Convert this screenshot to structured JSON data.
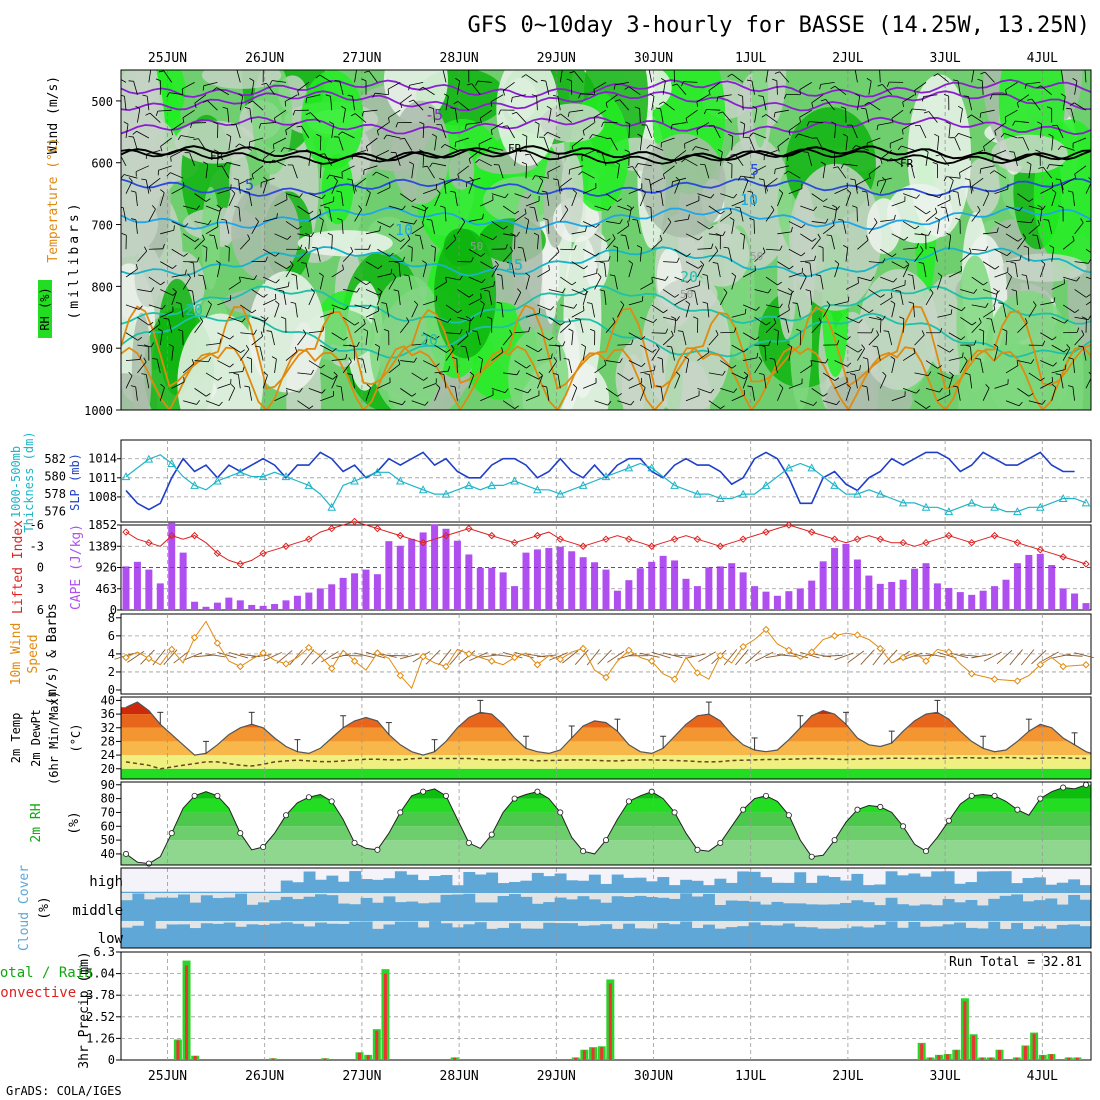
{
  "title": "GFS 0~10day 3-hourly for BASSE (14.25W, 13.25N)",
  "credit": "GrADS: COLA/IGES",
  "colors": {
    "green": "#11a811",
    "orange": "#e08a10",
    "red": "#dd2222",
    "purple": "#b04ff0",
    "cyan": "#1fb5c8",
    "blue": "#1e3fc8",
    "cloud": "#5ea7d6"
  },
  "chart_data": {
    "type": "composite",
    "dates": [
      "25JUN",
      "26JUN",
      "27JUN",
      "28JUN",
      "29JUN",
      "30JUN",
      "1JUL",
      "2JUL",
      "3JUL",
      "4JUL"
    ],
    "upper_air": {
      "ylabels": [
        "Wind (m/s)",
        "Temperature (°C)",
        "RH (%)",
        "(millibars)"
      ],
      "pressure_ticks": [
        500,
        600,
        700,
        800,
        900,
        1000
      ],
      "temp_contour_labels": [
        "-5",
        "5",
        "5",
        "10",
        "10",
        "15",
        "20",
        "20",
        "20",
        "FR",
        "FR",
        "FR",
        "50",
        "50",
        "50"
      ]
    },
    "slp_thickness": {
      "ylabels": [
        "1000-500mb",
        "Thickness (dm)",
        "SLP (mb)"
      ],
      "thickness_ticks": [
        576,
        578,
        580,
        582
      ],
      "slp_ticks": [
        1008,
        1011,
        1014
      ],
      "slp": [
        1009,
        1007,
        1006,
        1007,
        1011,
        1014,
        1012,
        1013,
        1011,
        1013,
        1012,
        1013,
        1014,
        1013,
        1011,
        1013,
        1013,
        1015,
        1014,
        1012,
        1013,
        1011,
        1012,
        1014,
        1013,
        1014,
        1015,
        1013,
        1014,
        1012,
        1011,
        1011,
        1013,
        1014,
        1014,
        1013,
        1011,
        1012,
        1014,
        1012,
        1011,
        1013,
        1011,
        1013,
        1014,
        1014,
        1012,
        1011,
        1013,
        1014,
        1013,
        1013,
        1012,
        1010,
        1011,
        1014,
        1015,
        1014,
        1011,
        1007,
        1007,
        1011,
        1012,
        1010,
        1009,
        1011,
        1012,
        1014,
        1013,
        1014,
        1015,
        1015,
        1014,
        1012,
        1013,
        1015,
        1014,
        1013,
        1013,
        1014,
        1015,
        1013,
        1012,
        1012
      ],
      "thickness": [
        580,
        581,
        582,
        582.5,
        581.5,
        580,
        579,
        578.5,
        579.5,
        580,
        580.5,
        580,
        580,
        580.5,
        580,
        579.5,
        579,
        578,
        576.5,
        579,
        579.5,
        580,
        580.5,
        580.5,
        579.5,
        579,
        578.5,
        578,
        578,
        578.5,
        579,
        578.5,
        579,
        579,
        579.5,
        579,
        578.5,
        578.5,
        578,
        578.5,
        579,
        579.5,
        580,
        580.5,
        581,
        581.5,
        581,
        580,
        579,
        578.5,
        578,
        578,
        577.5,
        577.5,
        578,
        578,
        579,
        580,
        581,
        581.5,
        581,
        580,
        579,
        578,
        578,
        578.5,
        578,
        577.5,
        577,
        577,
        576.5,
        576.5,
        576,
        576.5,
        577,
        576.5,
        576.5,
        576,
        576,
        576.5,
        576.5,
        577,
        577.5,
        577.5,
        577
      ]
    },
    "cape_li": {
      "ylabels": [
        "Lifted Index",
        "CAPE (J/kg)"
      ],
      "li_ticks": [
        6,
        3,
        0,
        -3,
        -6
      ],
      "cape_ticks": [
        0,
        463,
        926,
        1389,
        1852
      ],
      "cape": [
        950,
        1050,
        880,
        580,
        1900,
        1250,
        180,
        70,
        160,
        270,
        210,
        110,
        90,
        130,
        210,
        310,
        380,
        470,
        560,
        700,
        800,
        880,
        780,
        1500,
        1400,
        1550,
        1690,
        1870,
        1770,
        1510,
        1210,
        920,
        920,
        820,
        520,
        1250,
        1320,
        1350,
        1380,
        1280,
        1150,
        1040,
        880,
        420,
        650,
        910,
        1050,
        1180,
        1080,
        680,
        520,
        930,
        950,
        1020,
        820,
        520,
        400,
        310,
        410,
        470,
        640,
        1060,
        1350,
        1440,
        1100,
        750,
        570,
        610,
        660,
        900,
        1020,
        580,
        480,
        390,
        330,
        420,
        520,
        660,
        1020,
        1200,
        1220,
        980,
        470,
        360,
        150
      ],
      "li": [
        -5,
        -4,
        -3.5,
        -3,
        -4.5,
        -4,
        -4.5,
        -3.5,
        -2,
        -1,
        -0.5,
        -1,
        -2,
        -2.5,
        -3,
        -3.5,
        -4,
        -5,
        -5.5,
        -6,
        -6.5,
        -6,
        -5.5,
        -5,
        -4.5,
        -4,
        -3.5,
        -4,
        -4.5,
        -5,
        -5.5,
        -5,
        -4.5,
        -4,
        -3.5,
        -4,
        -4.5,
        -5,
        -4,
        -3.5,
        -3,
        -3.5,
        -4,
        -4.5,
        -4,
        -3.5,
        -3,
        -3.5,
        -4,
        -4.5,
        -4,
        -3.5,
        -3,
        -3.5,
        -4,
        -4.5,
        -5,
        -5.5,
        -6,
        -5.5,
        -5,
        -4.5,
        -4,
        -3.5,
        -4,
        -4.5,
        -4,
        -3.5,
        -3.5,
        -3,
        -3.5,
        -4,
        -4.5,
        -4,
        -3.5,
        -4,
        -4.5,
        -4,
        -3.5,
        -3,
        -2.5,
        -2,
        -1.5,
        -1,
        -0.5
      ]
    },
    "wind10m": {
      "ylabels": [
        "10m Wind",
        "Speed",
        "(m/s) & Barbs"
      ],
      "ticks": [
        0,
        2,
        4,
        6,
        8
      ],
      "speed": [
        3.6,
        4.2,
        3.5,
        2.8,
        4.5,
        3.0,
        5.8,
        7.6,
        5.2,
        3.2,
        2.6,
        3.4,
        4.1,
        3.3,
        2.9,
        3.6,
        4.7,
        3.8,
        2.4,
        4.4,
        3.2,
        2.2,
        4.1,
        3.5,
        1.6,
        0.2,
        3.7,
        3.0,
        2.6,
        4.5,
        4.0,
        3.6,
        3.2,
        2.8,
        3.6,
        4.1,
        2.8,
        3.8,
        3.4,
        4.2,
        4.6,
        2.2,
        1.4,
        3.2,
        4.4,
        3.6,
        3.2,
        1.8,
        1.2,
        3.6,
        1.9,
        1.2,
        3.8,
        3.0,
        4.8,
        5.6,
        6.7,
        5.1,
        4.4,
        3.4,
        4.2,
        5.6,
        6.0,
        6.3,
        6.1,
        5.6,
        4.6,
        3.0,
        3.6,
        4.1,
        3.2,
        4.5,
        4.2,
        2.9,
        1.8,
        1.5,
        1.2,
        1.1,
        1.0,
        1.6,
        2.8,
        3.6,
        2.6,
        2.7,
        2.8
      ]
    },
    "temp2m": {
      "ylabels": [
        "2m Temp",
        "2m DewPt",
        "(6hr Min/Max)",
        "(°C)"
      ],
      "ticks": [
        20,
        24,
        28,
        32,
        36,
        40
      ],
      "temp": [
        38,
        39.5,
        37,
        33,
        30,
        27,
        24,
        24.5,
        27,
        30,
        32,
        33,
        32,
        29,
        26.5,
        25,
        24.5,
        26,
        29,
        32,
        34,
        35,
        34,
        30,
        27,
        25,
        24,
        25,
        28,
        32,
        35,
        36.5,
        36,
        33,
        29,
        26,
        25,
        24.5,
        25.5,
        29,
        32.5,
        34,
        33.5,
        31,
        27,
        25,
        24.5,
        26,
        29.5,
        33,
        35.5,
        36,
        34,
        30,
        27,
        25.5,
        25,
        25.5,
        28.5,
        32,
        35.5,
        37,
        36,
        33,
        29,
        27,
        26.5,
        27.5,
        31,
        34,
        36,
        36.5,
        34.5,
        31,
        28,
        26,
        25,
        25.5,
        28,
        31,
        33,
        32,
        29,
        27,
        25,
        24
      ],
      "dewpt": [
        22,
        21.5,
        21,
        20,
        20.5,
        21,
        21.5,
        22,
        22,
        21.5,
        21,
        20.8,
        21.3,
        22,
        22.3,
        22.5,
        22.3,
        22.1,
        22.1,
        22.3,
        22.6,
        22.8,
        22.8,
        22.6,
        22.6,
        22.9,
        23.1,
        23,
        23,
        23,
        23,
        22.8,
        22.6,
        22.6,
        22.8,
        22.6,
        22.3,
        22.4,
        22.5,
        22.6,
        22.6,
        22.5,
        22.3,
        22.3,
        22.5,
        22.6,
        22.6,
        22.5,
        22.4,
        22.3,
        22.1,
        22,
        22.1,
        22.4,
        22.5,
        22.6,
        22.7,
        22.7,
        22.8,
        22.9,
        23,
        23,
        22.8,
        22.7,
        22.8,
        22.9,
        23,
        23.1,
        23.1,
        23,
        23,
        23,
        23.1,
        23.2,
        23.2,
        23.1,
        23.2,
        23.3,
        23.2,
        23,
        23.1,
        23.2,
        23.2,
        23.1,
        23
      ]
    },
    "rh2m": {
      "ylabels": [
        "2m RH",
        "(%)"
      ],
      "ticks": [
        40,
        50,
        60,
        70,
        80,
        90
      ],
      "rh": [
        40,
        34,
        33,
        38,
        55,
        73,
        82,
        85,
        82,
        73,
        55,
        43,
        45,
        55,
        68,
        77,
        81,
        83,
        78,
        65,
        48,
        44,
        43,
        55,
        70,
        82,
        85,
        87,
        82,
        65,
        48,
        44,
        54,
        70,
        80,
        83,
        85,
        80,
        70,
        52,
        42,
        40,
        50,
        65,
        78,
        82,
        85,
        80,
        70,
        55,
        43,
        42,
        48,
        60,
        72,
        80,
        82,
        78,
        68,
        50,
        38,
        39,
        50,
        63,
        72,
        75,
        74,
        70,
        60,
        47,
        42,
        52,
        64,
        76,
        82,
        83,
        82,
        78,
        72,
        68,
        80,
        85,
        88,
        87,
        90
      ]
    },
    "cloud": {
      "ylabels": [
        "Cloud Cover",
        "(%)"
      ],
      "levels": [
        "high",
        "middle",
        "low"
      ]
    },
    "precip": {
      "ylabels": [
        "Total / Rain",
        "Convective",
        "3hr Precip (mm)"
      ],
      "ticks": [
        0,
        1.26,
        2.52,
        3.78,
        5.04,
        6.3
      ],
      "run_total_label": "Run Total = 32.81",
      "bars": [
        {
          "i": 6,
          "v": 1.2
        },
        {
          "i": 7,
          "v": 5.8
        },
        {
          "i": 8,
          "v": 0.25
        },
        {
          "i": 17,
          "v": 0.1
        },
        {
          "i": 23,
          "v": 0.1
        },
        {
          "i": 27,
          "v": 0.45
        },
        {
          "i": 28,
          "v": 0.3
        },
        {
          "i": 29,
          "v": 1.8
        },
        {
          "i": 30,
          "v": 5.3
        },
        {
          "i": 38,
          "v": 0.15
        },
        {
          "i": 52,
          "v": 0.15
        },
        {
          "i": 53,
          "v": 0.6
        },
        {
          "i": 54,
          "v": 0.75
        },
        {
          "i": 55,
          "v": 0.8
        },
        {
          "i": 56,
          "v": 4.7
        },
        {
          "i": 92,
          "v": 1.0
        },
        {
          "i": 93,
          "v": 0.15
        },
        {
          "i": 94,
          "v": 0.3
        },
        {
          "i": 95,
          "v": 0.35
        },
        {
          "i": 96,
          "v": 0.6
        },
        {
          "i": 97,
          "v": 3.6
        },
        {
          "i": 98,
          "v": 1.5
        },
        {
          "i": 99,
          "v": 0.15
        },
        {
          "i": 100,
          "v": 0.15
        },
        {
          "i": 101,
          "v": 0.6
        },
        {
          "i": 103,
          "v": 0.15
        },
        {
          "i": 104,
          "v": 0.85
        },
        {
          "i": 105,
          "v": 1.6
        },
        {
          "i": 106,
          "v": 0.3
        },
        {
          "i": 107,
          "v": 0.35
        },
        {
          "i": 109,
          "v": 0.15
        },
        {
          "i": 110,
          "v": 0.15
        }
      ]
    }
  }
}
